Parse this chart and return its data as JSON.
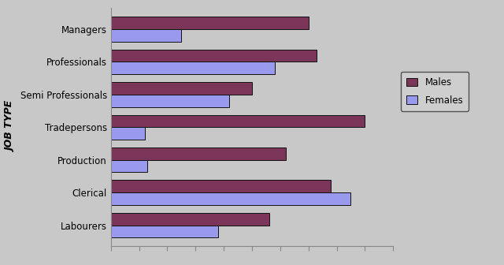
{
  "categories": [
    "Labourers",
    "Clerical",
    "Production",
    "Tradepersons",
    "Semi Professionals",
    "Professionals",
    "Managers"
  ],
  "males": [
    560,
    780,
    620,
    900,
    500,
    730,
    700
  ],
  "females": [
    380,
    850,
    130,
    120,
    420,
    580,
    250
  ],
  "male_color": "#7B3558",
  "female_color": "#9999EE",
  "bar_edge_color": "#111111",
  "background_color": "#C8C8C8",
  "plot_bg_color": "#C8C8C8",
  "fig_bg_color": "#C8C8C8",
  "ylabel": "JOB TYPE",
  "xlim": [
    0,
    1000
  ],
  "legend_males": "Males",
  "legend_females": "Females",
  "tick_fontsize": 8.5,
  "ylabel_fontsize": 9,
  "legend_fontsize": 8.5,
  "bar_height": 0.38
}
